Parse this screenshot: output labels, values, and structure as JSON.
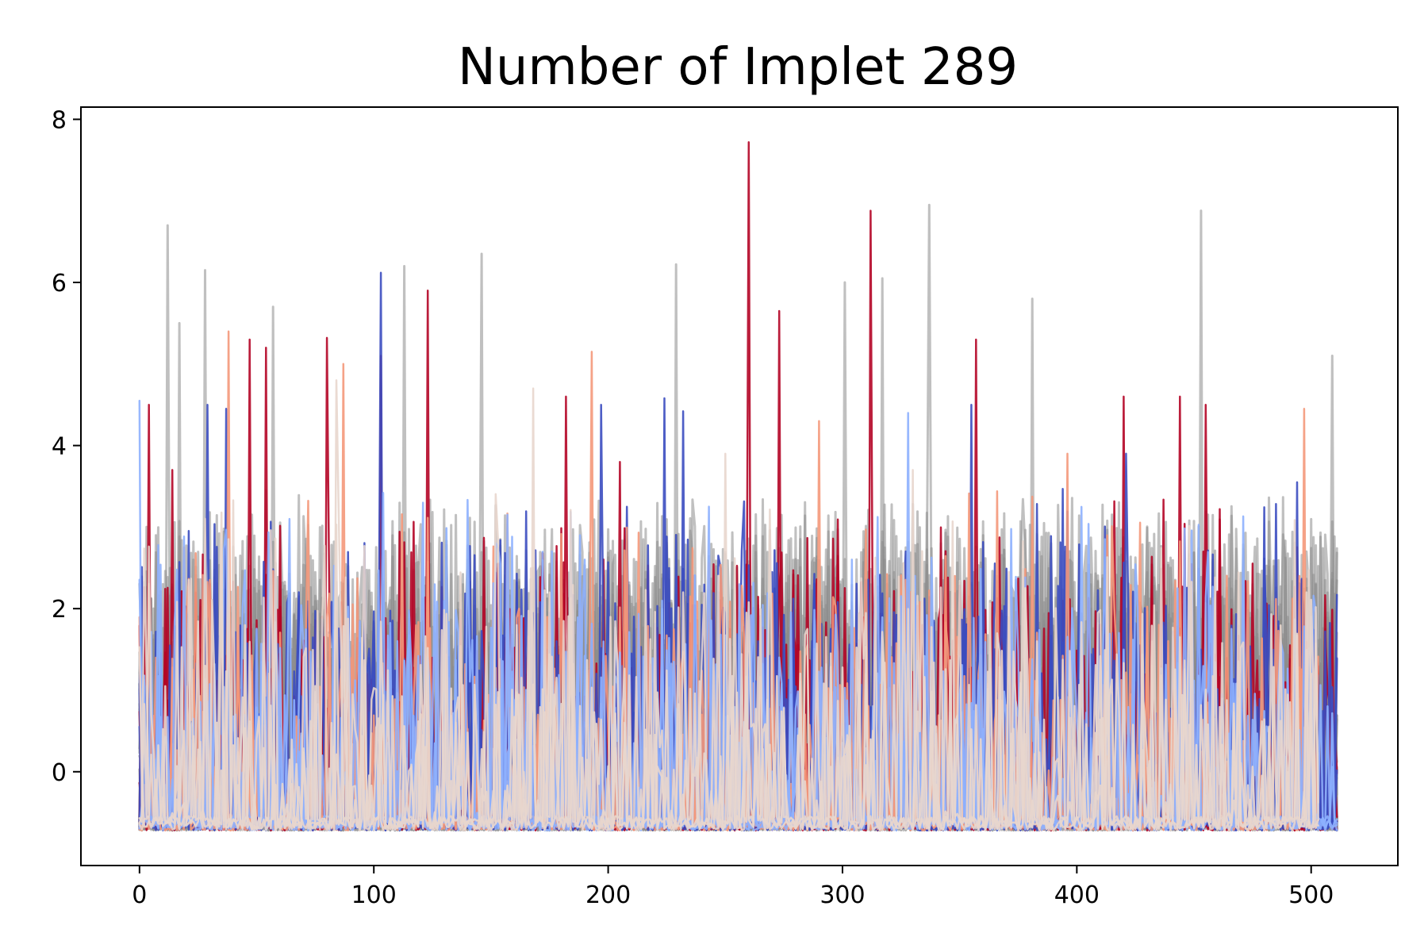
{
  "chart_data": {
    "type": "line",
    "title": "Number of Implet 289",
    "xlabel": "",
    "ylabel": "",
    "xlim": [
      -25,
      537
    ],
    "ylim": [
      -1.15,
      8.15
    ],
    "x_ticks": [
      0,
      100,
      200,
      300,
      400,
      500
    ],
    "y_ticks": [
      0,
      2,
      4,
      6,
      8
    ],
    "grid": false,
    "legend": "none",
    "x_range": [
      0,
      511
    ],
    "baseline": -0.72,
    "background_series": {
      "color": "#8c8c8c",
      "count": 40,
      "description_values": {
        "peaks": [
          {
            "x": 12,
            "y": 6.7
          },
          {
            "x": 17,
            "y": 5.5
          },
          {
            "x": 28,
            "y": 6.15
          },
          {
            "x": 57,
            "y": 5.7
          },
          {
            "x": 113,
            "y": 6.2
          },
          {
            "x": 146,
            "y": 6.35
          },
          {
            "x": 229,
            "y": 6.22
          },
          {
            "x": 301,
            "y": 6.0
          },
          {
            "x": 317,
            "y": 6.05
          },
          {
            "x": 337,
            "y": 6.95
          },
          {
            "x": 381,
            "y": 5.8
          },
          {
            "x": 453,
            "y": 6.88
          },
          {
            "x": 509,
            "y": 5.1
          }
        ]
      }
    },
    "highlight_series": [
      {
        "color": "#b40426",
        "peaks": [
          {
            "x": 4,
            "y": 4.5
          },
          {
            "x": 14,
            "y": 3.7
          },
          {
            "x": 47,
            "y": 5.3
          },
          {
            "x": 54,
            "y": 5.2
          },
          {
            "x": 80,
            "y": 5.32
          },
          {
            "x": 103,
            "y": 5.1
          },
          {
            "x": 123,
            "y": 5.9
          },
          {
            "x": 182,
            "y": 4.6
          },
          {
            "x": 205,
            "y": 3.8
          },
          {
            "x": 260,
            "y": 7.72
          },
          {
            "x": 273,
            "y": 5.65
          },
          {
            "x": 312,
            "y": 6.88
          },
          {
            "x": 357,
            "y": 5.3
          },
          {
            "x": 420,
            "y": 4.6
          },
          {
            "x": 444,
            "y": 4.6
          },
          {
            "x": 455,
            "y": 4.5
          }
        ]
      },
      {
        "color": "#3b4cc0",
        "peaks": [
          {
            "x": 29,
            "y": 4.5
          },
          {
            "x": 37,
            "y": 4.45
          },
          {
            "x": 103,
            "y": 6.12
          },
          {
            "x": 197,
            "y": 4.5
          },
          {
            "x": 224,
            "y": 4.58
          },
          {
            "x": 232,
            "y": 4.42
          },
          {
            "x": 355,
            "y": 4.5
          },
          {
            "x": 421,
            "y": 3.9
          },
          {
            "x": 494,
            "y": 3.55
          }
        ]
      },
      {
        "color": "#f4987a",
        "peaks": [
          {
            "x": 38,
            "y": 5.4
          },
          {
            "x": 87,
            "y": 5.0
          },
          {
            "x": 193,
            "y": 5.15
          },
          {
            "x": 290,
            "y": 4.3
          },
          {
            "x": 396,
            "y": 3.9
          },
          {
            "x": 497,
            "y": 4.45
          }
        ]
      },
      {
        "color": "#8db0fe",
        "peaks": [
          {
            "x": 0,
            "y": 4.55
          },
          {
            "x": 64,
            "y": 3.1
          },
          {
            "x": 121,
            "y": 3.3
          },
          {
            "x": 256,
            "y": 2.3
          },
          {
            "x": 328,
            "y": 4.4
          },
          {
            "x": 500,
            "y": 1.9
          }
        ]
      },
      {
        "color": "#e8d6cd",
        "peaks": [
          {
            "x": 84,
            "y": 4.8
          },
          {
            "x": 168,
            "y": 4.7
          },
          {
            "x": 250,
            "y": 3.9
          },
          {
            "x": 330,
            "y": 3.7
          },
          {
            "x": 498,
            "y": 2.2
          }
        ]
      }
    ]
  }
}
